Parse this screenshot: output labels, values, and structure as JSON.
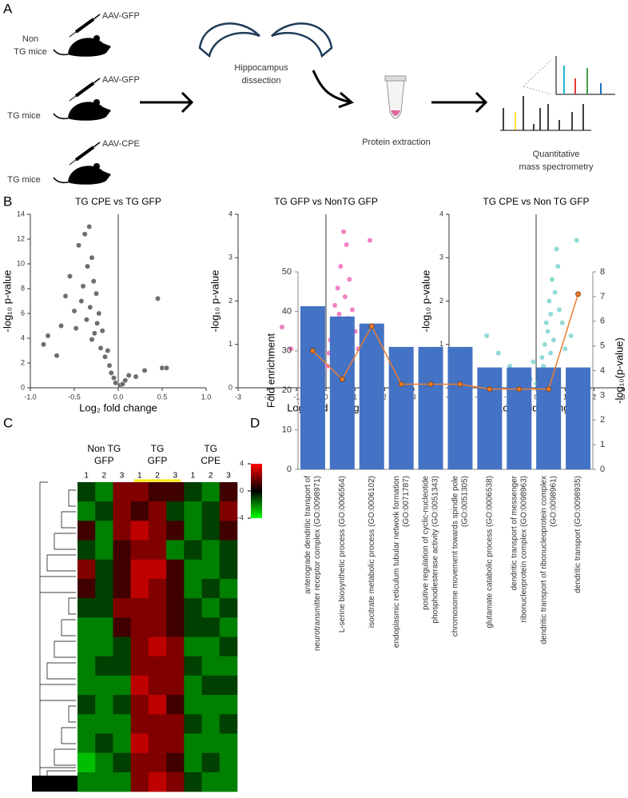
{
  "panels": [
    "A",
    "B",
    "C",
    "D"
  ],
  "panel_a": {
    "groups": [
      {
        "virus": "AAV-GFP",
        "mice": [
          "Non",
          "TG mice"
        ]
      },
      {
        "virus": "AAV-GFP",
        "mice": [
          "TG mice"
        ]
      },
      {
        "virus": "AAV-CPE",
        "mice": [
          "TG mice"
        ]
      }
    ],
    "steps": [
      [
        "Hippocampus",
        "dissection"
      ],
      [
        "Protein extraction"
      ],
      [
        "Quantitative",
        "mass spectrometry"
      ]
    ]
  },
  "chart_data": [
    {
      "type": "scatter",
      "title": "TG CPE vs TG GFP",
      "x_label": "Log₂ fold change",
      "y_label": "-log₁₀ p-value",
      "color": "#555555",
      "x": [
        -0.85,
        -0.8,
        -0.7,
        -0.65,
        -0.6,
        -0.55,
        -0.5,
        -0.48,
        -0.45,
        -0.42,
        -0.4,
        -0.38,
        -0.36,
        -0.35,
        -0.33,
        -0.32,
        -0.3,
        -0.3,
        -0.28,
        -0.27,
        -0.25,
        -0.24,
        -0.22,
        -0.2,
        -0.18,
        -0.15,
        -0.12,
        -0.1,
        -0.08,
        -0.05,
        -0.03,
        0.02,
        0.05,
        0.08,
        0.12,
        0.2,
        0.3,
        0.45,
        0.5,
        0.55
      ],
      "y": [
        3.5,
        4.2,
        2.6,
        5.0,
        7.4,
        9.0,
        6.2,
        4.8,
        11.5,
        7.0,
        8.2,
        12.4,
        5.5,
        9.8,
        13.0,
        6.5,
        10.5,
        3.9,
        8.6,
        4.4,
        7.6,
        5.2,
        6.0,
        3.2,
        4.6,
        2.5,
        3.0,
        1.8,
        1.2,
        0.8,
        0.4,
        0.2,
        0.3,
        0.6,
        1.0,
        0.9,
        1.4,
        7.2,
        1.6,
        1.6
      ],
      "xlim": [
        -1,
        1
      ],
      "xticks": [
        {
          "value": -1,
          "label": "-1.0"
        },
        {
          "value": -0.5,
          "label": "-0.5"
        },
        {
          "value": 0,
          "label": "0.0"
        },
        0.5,
        {
          "value": 1,
          "label": "1.0"
        }
      ],
      "ylim": [
        0,
        14
      ],
      "yticks": [
        0,
        2,
        4,
        6,
        8,
        10,
        12,
        14
      ]
    },
    {
      "type": "scatter",
      "title": "TG GFP vs NonTG GFP",
      "x_label": "Log₂ fold change",
      "y_label": "-log₁₀ p-value",
      "color": "#f06bb8",
      "x": [
        -1.5,
        -1.2,
        -0.8,
        -0.5,
        -0.3,
        -0.1,
        0.05,
        0.1,
        0.15,
        0.2,
        0.25,
        0.3,
        0.35,
        0.4,
        0.45,
        0.5,
        0.55,
        0.6,
        0.65,
        0.7,
        0.75,
        0.8,
        0.9,
        1.0,
        1.1,
        1.3,
        1.5,
        0.4,
        0.6,
        0.3
      ],
      "y": [
        1.4,
        0.9,
        0.6,
        0.3,
        0.2,
        0.1,
        0.5,
        0.8,
        1.1,
        0.7,
        1.5,
        1.9,
        1.2,
        2.3,
        1.7,
        2.8,
        0.9,
        3.6,
        2.1,
        3.3,
        1.6,
        2.5,
        1.8,
        1.3,
        0.9,
        1.1,
        3.4,
        0.4,
        1.0,
        0.6
      ],
      "xlim": [
        -3,
        3
      ],
      "xticks": [
        -3,
        -2,
        -1,
        0,
        1,
        2,
        3
      ],
      "ylim": [
        0,
        4
      ],
      "yticks": [
        0,
        1,
        2,
        3,
        4
      ]
    },
    {
      "type": "scatter",
      "title": "TG CPE vs Non TG GFP",
      "x_label": "Log₂ fold change",
      "y_label": "-log₁₀ p-value",
      "color": "#7fd3cf",
      "x": [
        -1.7,
        -1.3,
        -0.9,
        -0.6,
        -0.4,
        -0.2,
        -0.1,
        0,
        0.1,
        0.2,
        0.3,
        0.35,
        0.4,
        0.45,
        0.5,
        0.55,
        0.6,
        0.65,
        0.7,
        0.8,
        0.9,
        1.0,
        1.2,
        1.4,
        -0.3,
        0.25,
        0.5,
        0.75
      ],
      "y": [
        1.2,
        0.8,
        0.5,
        0.3,
        0.4,
        0.2,
        0.6,
        0.1,
        0.3,
        0.7,
        1.0,
        1.5,
        1.3,
        2.0,
        1.7,
        2.5,
        1.1,
        2.2,
        3.2,
        1.8,
        1.5,
        0.9,
        1.2,
        3.4,
        0.3,
        0.5,
        0.8,
        2.8
      ],
      "xlim": [
        -3,
        3
      ],
      "xticks": [
        -3,
        -2,
        -1,
        0,
        1,
        2,
        3
      ],
      "ylim": [
        0,
        4
      ],
      "yticks": [
        0,
        1,
        2,
        3,
        4
      ]
    },
    {
      "type": "heatmap",
      "groups": [
        [
          "Non TG",
          "GFP"
        ],
        [
          "TG",
          "GFP"
        ],
        [
          "TG",
          "CPE"
        ]
      ],
      "columns": [
        "1",
        "2",
        "3",
        "1",
        "2",
        "3",
        "1",
        "2",
        "3"
      ],
      "values": [
        [
          -1,
          -2,
          2,
          2,
          1,
          1,
          -1,
          -2,
          1
        ],
        [
          -2,
          -1,
          2,
          1,
          2,
          -1,
          -2,
          -1,
          2
        ],
        [
          1,
          -2,
          2,
          3,
          2,
          1,
          -2,
          -1,
          1
        ],
        [
          -1,
          -2,
          1,
          2,
          2,
          -2,
          -1,
          -2,
          -1
        ],
        [
          2,
          -1,
          1,
          3,
          3,
          1,
          -2,
          -2,
          -1
        ],
        [
          1,
          -1,
          1,
          3,
          2,
          1,
          -2,
          -1,
          -2
        ],
        [
          -1,
          -1,
          2,
          2,
          2,
          1,
          -1,
          -2,
          -1
        ],
        [
          -2,
          -2,
          1,
          2,
          2,
          1,
          -1,
          -1,
          -2
        ],
        [
          -2,
          -2,
          -1,
          2,
          3,
          2,
          -2,
          -2,
          -1
        ],
        [
          -2,
          -1,
          -1,
          2,
          2,
          2,
          -1,
          -2,
          -2
        ],
        [
          -2,
          -2,
          -2,
          3,
          2,
          2,
          -2,
          -1,
          -1
        ],
        [
          -1,
          -2,
          -1,
          2,
          3,
          1,
          -2,
          -2,
          -2
        ],
        [
          -2,
          -2,
          -2,
          2,
          2,
          2,
          -1,
          -2,
          -1
        ],
        [
          -2,
          -1,
          -2,
          3,
          2,
          2,
          -2,
          -2,
          -2
        ],
        [
          -3,
          -2,
          -1,
          2,
          2,
          1,
          -2,
          -1,
          -2
        ],
        [
          -2,
          -2,
          -2,
          2,
          3,
          2,
          -1,
          -2,
          -2
        ]
      ],
      "zlim": [
        -4,
        4
      ],
      "colorbar_ticks": [
        4,
        0,
        -4
      ],
      "colors": [
        "#00ff00",
        "#000000",
        "#ff0000"
      ]
    },
    {
      "type": "bar",
      "y_label": "Fold enrichment",
      "y2_label": "-log₁₀(p-value)",
      "categories": [
        [
          "anterograde dendritic transport of",
          "neurotransmitter receptor complex (GO:0098971)"
        ],
        [
          "L-serine biosynthetic process (GO:0006564)"
        ],
        [
          "isocitrate metabolic process (GO:0006102)"
        ],
        [
          "endoplasmic reticulum tubular network formation",
          "(GO:0071787)"
        ],
        [
          "positive regulation of cyclic-nucleotide",
          "phosphodiesterase activity (GO:0051343)"
        ],
        [
          "chromosome movement towards spindle pole",
          "(GO:0051305)"
        ],
        [
          "glutamate catabolic process (GO:0006538)"
        ],
        [
          "dendritic transport of messenger",
          "ribonucleoprotein complex (GO:0098963)"
        ],
        [
          "dendritic transport of ribonucleoprotein complex",
          "(GO:0098961)"
        ],
        [
          "dendritic transport (GO:0098935)"
        ]
      ],
      "series": [
        {
          "type": "bar",
          "color": "#4472c4",
          "values": [
            41.3,
            38.7,
            36.9,
            31,
            31,
            31,
            25.8,
            25.8,
            25.8,
            25.8
          ]
        },
        {
          "type": "line",
          "axis": "y2",
          "color": "#ed7d31",
          "values": [
            4.8,
            3.65,
            5.8,
            3.45,
            3.45,
            3.45,
            3.25,
            3.25,
            3.25,
            7.1
          ]
        }
      ],
      "ylim": [
        0,
        50
      ],
      "yticks": [
        0,
        10,
        20,
        30,
        40,
        50
      ],
      "y2lim": [
        0,
        8
      ],
      "y2ticks": [
        0,
        1,
        2,
        3,
        4,
        5,
        6,
        7,
        8
      ]
    }
  ]
}
